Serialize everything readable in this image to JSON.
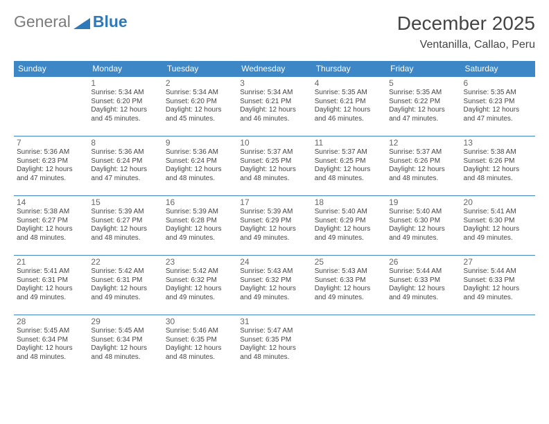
{
  "logo": {
    "text_general": "General",
    "text_blue": "Blue",
    "shape_color": "#2f79b9",
    "gray_color": "#7b7b7b"
  },
  "header": {
    "title": "December 2025",
    "location": "Ventanilla, Callao, Peru"
  },
  "style": {
    "header_bg": "#3d87c7",
    "header_text": "#ffffff",
    "cell_border": "#3d87c7",
    "body_text": "#444444",
    "daynum_text": "#666666",
    "page_bg": "#ffffff",
    "title_fontsize": 28,
    "location_fontsize": 16,
    "dayheader_fontsize": 12,
    "cell_fontsize": 10
  },
  "day_headers": [
    "Sunday",
    "Monday",
    "Tuesday",
    "Wednesday",
    "Thursday",
    "Friday",
    "Saturday"
  ],
  "weeks": [
    [
      null,
      {
        "n": "1",
        "sr": "5:34 AM",
        "ss": "6:20 PM",
        "dl": "12 hours and 45 minutes."
      },
      {
        "n": "2",
        "sr": "5:34 AM",
        "ss": "6:20 PM",
        "dl": "12 hours and 45 minutes."
      },
      {
        "n": "3",
        "sr": "5:34 AM",
        "ss": "6:21 PM",
        "dl": "12 hours and 46 minutes."
      },
      {
        "n": "4",
        "sr": "5:35 AM",
        "ss": "6:21 PM",
        "dl": "12 hours and 46 minutes."
      },
      {
        "n": "5",
        "sr": "5:35 AM",
        "ss": "6:22 PM",
        "dl": "12 hours and 47 minutes."
      },
      {
        "n": "6",
        "sr": "5:35 AM",
        "ss": "6:23 PM",
        "dl": "12 hours and 47 minutes."
      }
    ],
    [
      {
        "n": "7",
        "sr": "5:36 AM",
        "ss": "6:23 PM",
        "dl": "12 hours and 47 minutes."
      },
      {
        "n": "8",
        "sr": "5:36 AM",
        "ss": "6:24 PM",
        "dl": "12 hours and 47 minutes."
      },
      {
        "n": "9",
        "sr": "5:36 AM",
        "ss": "6:24 PM",
        "dl": "12 hours and 48 minutes."
      },
      {
        "n": "10",
        "sr": "5:37 AM",
        "ss": "6:25 PM",
        "dl": "12 hours and 48 minutes."
      },
      {
        "n": "11",
        "sr": "5:37 AM",
        "ss": "6:25 PM",
        "dl": "12 hours and 48 minutes."
      },
      {
        "n": "12",
        "sr": "5:37 AM",
        "ss": "6:26 PM",
        "dl": "12 hours and 48 minutes."
      },
      {
        "n": "13",
        "sr": "5:38 AM",
        "ss": "6:26 PM",
        "dl": "12 hours and 48 minutes."
      }
    ],
    [
      {
        "n": "14",
        "sr": "5:38 AM",
        "ss": "6:27 PM",
        "dl": "12 hours and 48 minutes."
      },
      {
        "n": "15",
        "sr": "5:39 AM",
        "ss": "6:27 PM",
        "dl": "12 hours and 48 minutes."
      },
      {
        "n": "16",
        "sr": "5:39 AM",
        "ss": "6:28 PM",
        "dl": "12 hours and 49 minutes."
      },
      {
        "n": "17",
        "sr": "5:39 AM",
        "ss": "6:29 PM",
        "dl": "12 hours and 49 minutes."
      },
      {
        "n": "18",
        "sr": "5:40 AM",
        "ss": "6:29 PM",
        "dl": "12 hours and 49 minutes."
      },
      {
        "n": "19",
        "sr": "5:40 AM",
        "ss": "6:30 PM",
        "dl": "12 hours and 49 minutes."
      },
      {
        "n": "20",
        "sr": "5:41 AM",
        "ss": "6:30 PM",
        "dl": "12 hours and 49 minutes."
      }
    ],
    [
      {
        "n": "21",
        "sr": "5:41 AM",
        "ss": "6:31 PM",
        "dl": "12 hours and 49 minutes."
      },
      {
        "n": "22",
        "sr": "5:42 AM",
        "ss": "6:31 PM",
        "dl": "12 hours and 49 minutes."
      },
      {
        "n": "23",
        "sr": "5:42 AM",
        "ss": "6:32 PM",
        "dl": "12 hours and 49 minutes."
      },
      {
        "n": "24",
        "sr": "5:43 AM",
        "ss": "6:32 PM",
        "dl": "12 hours and 49 minutes."
      },
      {
        "n": "25",
        "sr": "5:43 AM",
        "ss": "6:33 PM",
        "dl": "12 hours and 49 minutes."
      },
      {
        "n": "26",
        "sr": "5:44 AM",
        "ss": "6:33 PM",
        "dl": "12 hours and 49 minutes."
      },
      {
        "n": "27",
        "sr": "5:44 AM",
        "ss": "6:33 PM",
        "dl": "12 hours and 49 minutes."
      }
    ],
    [
      {
        "n": "28",
        "sr": "5:45 AM",
        "ss": "6:34 PM",
        "dl": "12 hours and 48 minutes."
      },
      {
        "n": "29",
        "sr": "5:45 AM",
        "ss": "6:34 PM",
        "dl": "12 hours and 48 minutes."
      },
      {
        "n": "30",
        "sr": "5:46 AM",
        "ss": "6:35 PM",
        "dl": "12 hours and 48 minutes."
      },
      {
        "n": "31",
        "sr": "5:47 AM",
        "ss": "6:35 PM",
        "dl": "12 hours and 48 minutes."
      },
      null,
      null,
      null
    ]
  ],
  "labels": {
    "sunrise": "Sunrise:",
    "sunset": "Sunset:",
    "daylight": "Daylight:"
  }
}
